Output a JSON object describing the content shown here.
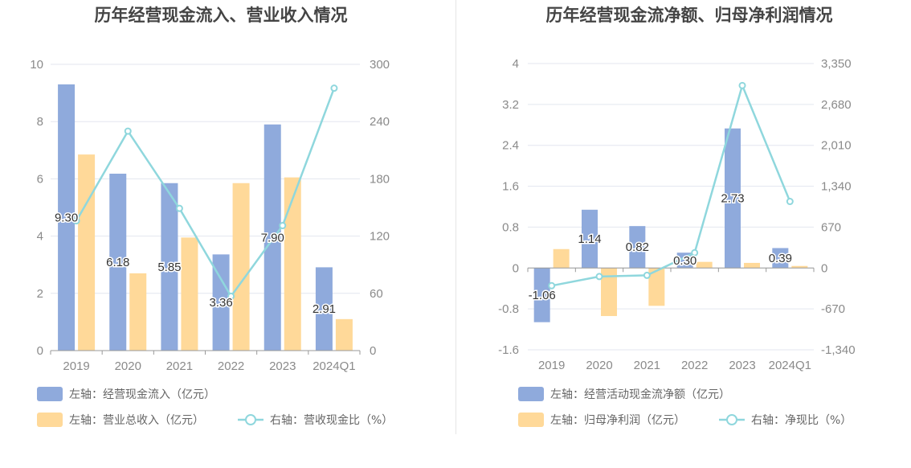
{
  "colors": {
    "bar_primary": "#8faadc",
    "bar_secondary": "#ffd999",
    "line": "#8fd7dd",
    "grid": "#e3e6ef",
    "axis": "#999999"
  },
  "chart_data": [
    {
      "type": "bar",
      "title": "历年经营现金流入、营业收入情况",
      "categories": [
        "2019",
        "2020",
        "2021",
        "2022",
        "2023",
        "2024Q1"
      ],
      "y_left": {
        "min": 0,
        "max": 10,
        "ticks": [
          "0",
          "2",
          "4",
          "6",
          "8",
          "10"
        ]
      },
      "y_right": {
        "min": 0,
        "max": 300,
        "ticks": [
          "0",
          "60",
          "120",
          "180",
          "240",
          "300"
        ]
      },
      "series": [
        {
          "name": "左轴：经营现金流入（亿元）",
          "type": "bar",
          "axis": "left",
          "values": [
            9.3,
            6.18,
            5.85,
            3.36,
            7.9,
            2.91
          ],
          "labels": [
            "9.30",
            "6.18",
            "5.85",
            "3.36",
            "7.90",
            "2.91"
          ]
        },
        {
          "name": "左轴：营业总收入（亿元）",
          "type": "bar",
          "axis": "left",
          "values": [
            6.85,
            2.7,
            3.95,
            5.85,
            6.05,
            1.1
          ]
        },
        {
          "name": "右轴：营收现金比（%）",
          "type": "line",
          "axis": "right",
          "values": [
            136,
            230,
            149,
            57,
            131,
            275
          ]
        }
      ],
      "grid": true,
      "legend_position": "bottom"
    },
    {
      "type": "bar",
      "title": "历年经营现金流净额、归母净利润情况",
      "categories": [
        "2019",
        "2020",
        "2021",
        "2022",
        "2023",
        "2024Q1"
      ],
      "y_left": {
        "min": -1.6,
        "max": 4,
        "ticks": [
          "-1.6",
          "-0.8",
          "0",
          "0.8",
          "1.6",
          "2.4",
          "3.2",
          "4"
        ]
      },
      "y_right": {
        "min": -1340,
        "max": 3350,
        "ticks": [
          "-1,340",
          "-670",
          "0",
          "670",
          "1,340",
          "2,010",
          "2,680",
          "3,350"
        ]
      },
      "series": [
        {
          "name": "左轴：经营活动现金流净额（亿元）",
          "type": "bar",
          "axis": "left",
          "values": [
            -1.06,
            1.14,
            0.82,
            0.3,
            2.73,
            0.39
          ],
          "labels": [
            "-1.06",
            "1.14",
            "0.82",
            "0.30",
            "2.73",
            "0.39"
          ]
        },
        {
          "name": "左轴：归母净利润（亿元）",
          "type": "bar",
          "axis": "left",
          "values": [
            0.37,
            -0.94,
            -0.74,
            0.12,
            0.1,
            0.04
          ]
        },
        {
          "name": "右轴：净现比（%）",
          "type": "line",
          "axis": "right",
          "values": [
            -290,
            -140,
            -120,
            250,
            2990,
            1090
          ]
        }
      ],
      "grid": true,
      "legend_position": "bottom"
    }
  ]
}
